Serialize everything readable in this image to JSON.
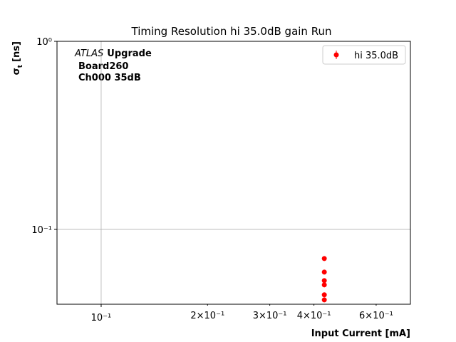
{
  "chart_data": {
    "type": "scatter",
    "title": "Timing Resolution hi 35.0dB gain Run",
    "xlabel": "Input Current [mA]",
    "ylabel": {
      "symbol": "σ",
      "subscript": "t",
      "unit": "[ns]"
    },
    "annotation": {
      "experiment": "ATLAS",
      "label": "Upgrade",
      "lines": [
        "Board260",
        "Ch000 35dB"
      ]
    },
    "xscale": "log",
    "yscale": "log",
    "xlim": [
      0.075,
      0.75
    ],
    "ylim": [
      0.04,
      1
    ],
    "xticks": [
      {
        "value": 0.1,
        "label": "10⁻¹"
      }
    ],
    "xminor_ticks": [
      {
        "value": 0.2,
        "label": "2×10⁻¹"
      },
      {
        "value": 0.3,
        "label": "3×10⁻¹"
      },
      {
        "value": 0.4,
        "label": "4×10⁻¹"
      },
      {
        "value": 0.6,
        "label": "6×10⁻¹"
      }
    ],
    "yticks": [
      {
        "value": 1,
        "label": "10⁰"
      },
      {
        "value": 0.1,
        "label": "10⁻¹"
      }
    ],
    "grid": true,
    "legend": "upper right",
    "series": [
      {
        "name": "hi 35.0dB",
        "color": "#ff0000",
        "x": [
          0.428,
          0.428,
          0.428,
          0.428,
          0.428,
          0.428
        ],
        "values": [
          0.07,
          0.0593,
          0.0534,
          0.0507,
          0.0449,
          0.0422
        ]
      }
    ]
  }
}
